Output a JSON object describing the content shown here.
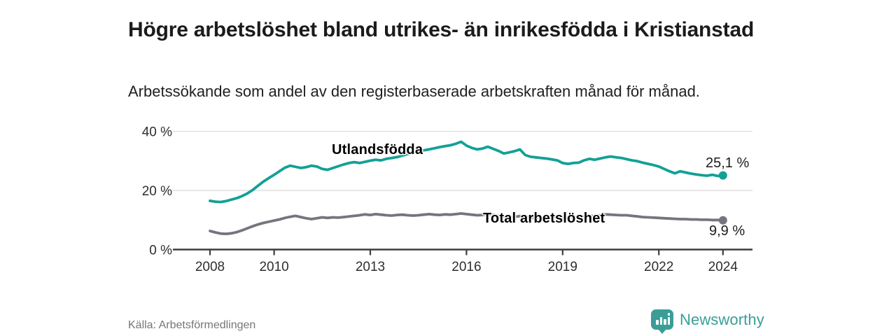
{
  "chart_data": {
    "type": "line",
    "title": "Högre arbetslöshet bland utrikes- än inrikesfödda i Kristianstad",
    "subtitle": "Arbetssökande som andel av den registerbaserade arbetskraften månad för månad.",
    "x_unit": "year",
    "x_start_year": 2008,
    "x_end_year": 2024,
    "x_step_months": 2,
    "x_ticks": [
      2008,
      2010,
      2013,
      2016,
      2019,
      2022,
      2024
    ],
    "y_ticks": [
      0,
      20,
      40
    ],
    "y_tick_suffix": " %",
    "ylim": [
      0,
      42
    ],
    "grid": "horizontal",
    "legend_position": "inline-labels",
    "axis_color": "#3d3d42",
    "grid_color": "#d9d9d9",
    "tick_text_color": "#2e2e2e",
    "series": [
      {
        "name": "Utlandsfödda",
        "color": "#13a096",
        "end_label": "25,1 %",
        "end_value": 25.1,
        "values": [
          16.5,
          16.2,
          16.1,
          16.4,
          16.9,
          17.4,
          18.1,
          19.0,
          20.2,
          21.6,
          23.0,
          24.2,
          25.3,
          26.5,
          27.7,
          28.4,
          28.0,
          27.6,
          27.9,
          28.4,
          28.1,
          27.3,
          27.0,
          27.6,
          28.2,
          28.8,
          29.3,
          29.6,
          29.3,
          29.7,
          30.1,
          30.4,
          30.2,
          30.7,
          31.0,
          31.3,
          31.8,
          32.3,
          32.8,
          33.2,
          33.6,
          33.9,
          34.3,
          34.7,
          35.0,
          35.3,
          35.8,
          36.5,
          35.2,
          34.4,
          33.9,
          34.2,
          34.8,
          34.1,
          33.4,
          32.5,
          32.9,
          33.3,
          33.9,
          32.0,
          31.4,
          31.2,
          31.0,
          30.8,
          30.5,
          30.2,
          29.3,
          29.0,
          29.3,
          29.4,
          30.2,
          30.7,
          30.4,
          30.8,
          31.2,
          31.5,
          31.2,
          31.0,
          30.6,
          30.2,
          29.9,
          29.4,
          29.0,
          28.6,
          28.1,
          27.3,
          26.5,
          25.8,
          26.5,
          26.1,
          25.7,
          25.4,
          25.2,
          25.0,
          25.3,
          24.9,
          25.1
        ]
      },
      {
        "name": "Total arbetslöshet",
        "color": "#75757d",
        "end_label": "9,9 %",
        "end_value": 9.9,
        "values": [
          6.3,
          5.8,
          5.4,
          5.3,
          5.5,
          5.9,
          6.5,
          7.2,
          7.9,
          8.5,
          9.0,
          9.4,
          9.8,
          10.2,
          10.7,
          11.1,
          11.4,
          11.0,
          10.6,
          10.3,
          10.6,
          10.9,
          10.7,
          10.9,
          10.8,
          11.0,
          11.2,
          11.4,
          11.6,
          11.9,
          11.7,
          12.0,
          11.8,
          11.6,
          11.5,
          11.7,
          11.8,
          11.6,
          11.5,
          11.6,
          11.8,
          12.0,
          11.8,
          11.7,
          11.9,
          11.8,
          12.0,
          12.2,
          12.0,
          11.8,
          11.6,
          11.7,
          11.9,
          11.7,
          11.4,
          11.2,
          11.0,
          11.1,
          11.3,
          11.0,
          10.8,
          10.6,
          10.7,
          10.9,
          11.1,
          11.0,
          10.9,
          10.8,
          11.0,
          11.1,
          11.2,
          11.3,
          11.4,
          11.6,
          11.9,
          11.8,
          11.7,
          11.6,
          11.6,
          11.4,
          11.2,
          11.0,
          10.9,
          10.8,
          10.7,
          10.6,
          10.5,
          10.4,
          10.3,
          10.3,
          10.2,
          10.2,
          10.1,
          10.1,
          10.0,
          10.0,
          9.9
        ]
      }
    ]
  },
  "footer": {
    "source": "Källa: Arbetsförmedlingen",
    "brand": "Newsworthy",
    "brand_color": "#3a9e97",
    "brand_icon": "bar-chart-bubble-icon"
  }
}
